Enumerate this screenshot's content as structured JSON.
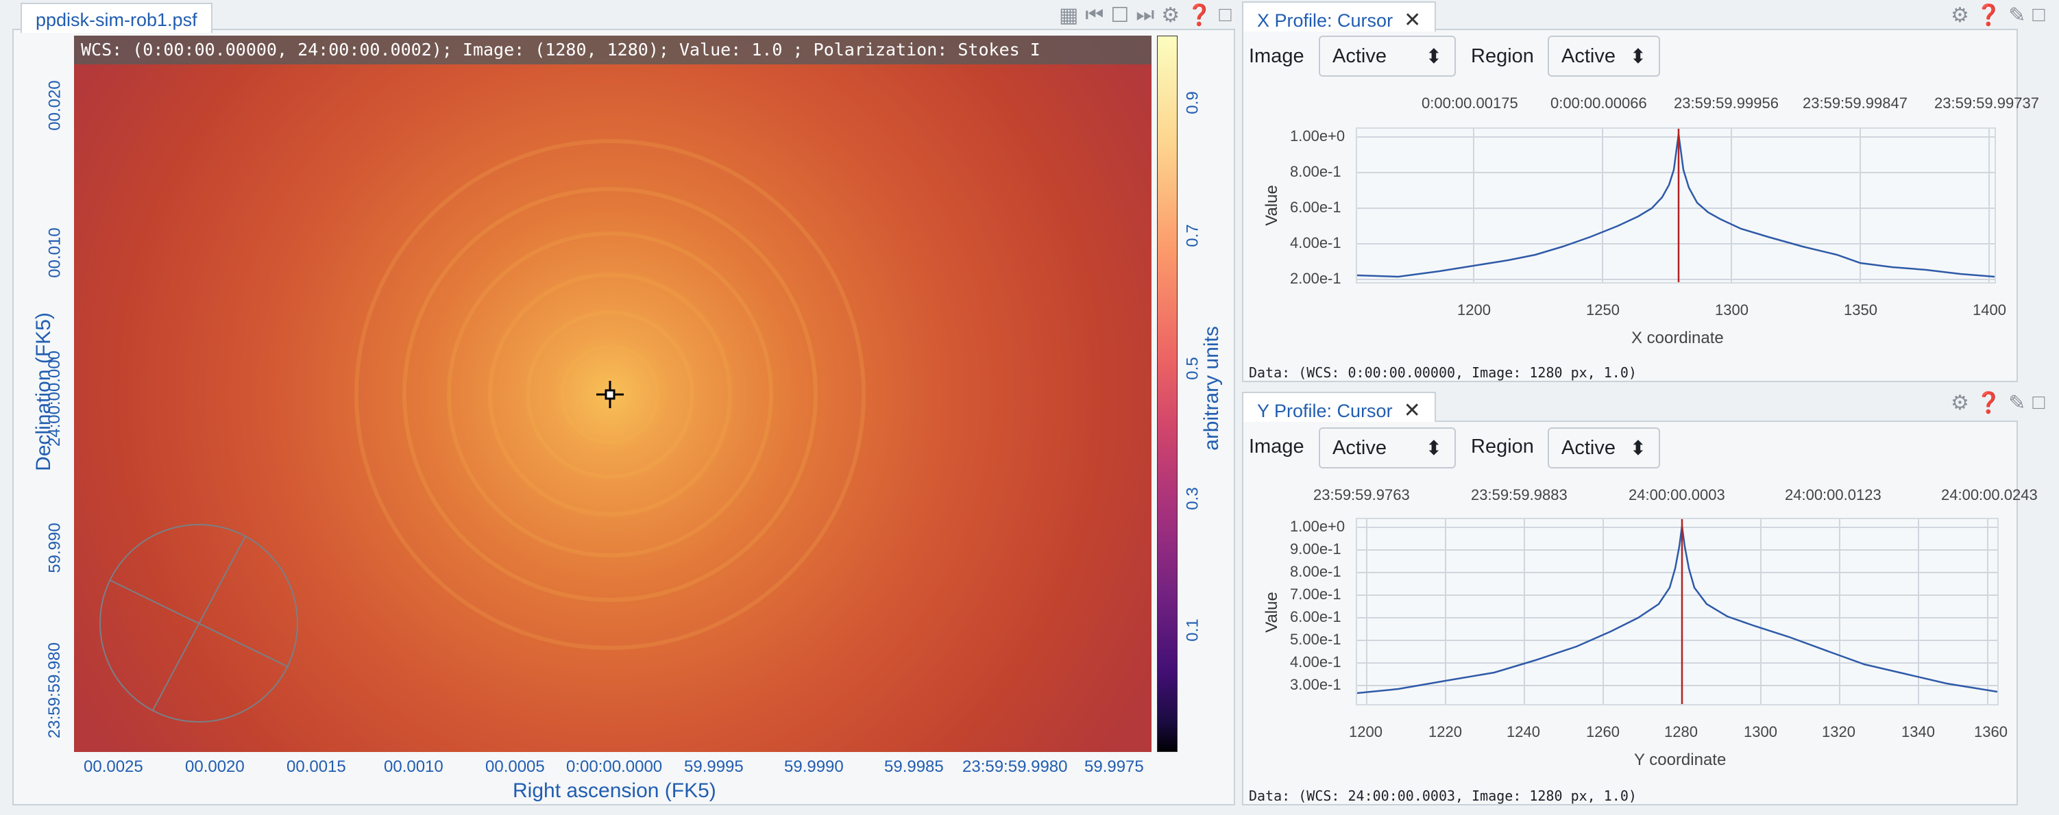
{
  "main_panel": {
    "tab_title": "ppdisk-sim-rob1.psf",
    "status_text": "WCS: (0:00:00.00000, 24:00:00.0002); Image: (1280, 1280); Value:  1.0 ; Polarization: Stokes I",
    "x_axis_title": "Right ascension (FK5)",
    "y_axis_title": "Declination (FK5)",
    "x_ticks": [
      "00.0025",
      "00.0020",
      "00.0015",
      "00.0010",
      "00.0005",
      "0:00:00.0000",
      "59.9995",
      "59.9990",
      "59.9985",
      "23:59:59.9980",
      "59.9975"
    ],
    "y_ticks": [
      "00.020",
      "00.010",
      "24:00:00.000",
      "59.990",
      "23:59:59.980"
    ],
    "colorbar_ticks": [
      "0.9",
      "0.7",
      "0.5",
      "0.3",
      "0.1"
    ],
    "colorbar_label": "arbitrary units",
    "icons": [
      "layout-icon",
      "first-frame-icon",
      "square-icon",
      "next-frame-icon",
      "gear-icon",
      "help-icon",
      "maximize-icon"
    ]
  },
  "x_profile": {
    "tab_title": "X Profile: Cursor",
    "image_label": "Image",
    "image_value": "Active",
    "region_label": "Region",
    "region_value": "Active",
    "top_ticks": [
      "0:00:00.00175",
      "0:00:00.00066",
      "23:59:59.99956",
      "23:59:59.99847",
      "23:59:59.99737"
    ],
    "y_ticks": [
      "1.00e+0",
      "8.00e-1",
      "6.00e-1",
      "4.00e-1",
      "2.00e-1"
    ],
    "x_ticks": [
      "1200",
      "1250",
      "1300",
      "1350",
      "1400"
    ],
    "y_axis_title": "Value",
    "x_axis_title": "X coordinate",
    "data_text": "Data: (WCS: 0:00:00.00000, Image: 1280 px, 1.0)"
  },
  "y_profile": {
    "tab_title": "Y Profile: Cursor",
    "image_label": "Image",
    "image_value": "Active",
    "region_label": "Region",
    "region_value": "Active",
    "top_ticks": [
      "23:59:59.9763",
      "23:59:59.9883",
      "24:00:00.0003",
      "24:00:00.0123",
      "24:00:00.0243"
    ],
    "y_ticks": [
      "1.00e+0",
      "9.00e-1",
      "8.00e-1",
      "7.00e-1",
      "6.00e-1",
      "5.00e-1",
      "4.00e-1",
      "3.00e-1"
    ],
    "x_ticks": [
      "1200",
      "1220",
      "1240",
      "1260",
      "1280",
      "1300",
      "1320",
      "1340",
      "1360"
    ],
    "y_axis_title": "Value",
    "x_axis_title": "Y coordinate",
    "data_text": "Data: (WCS: 24:00:00.0003, Image: 1280 px, 1.0)"
  },
  "colors": {
    "accent": "#215db0",
    "profile_line": "#2e5aa8",
    "cursor_line": "#b22222"
  }
}
